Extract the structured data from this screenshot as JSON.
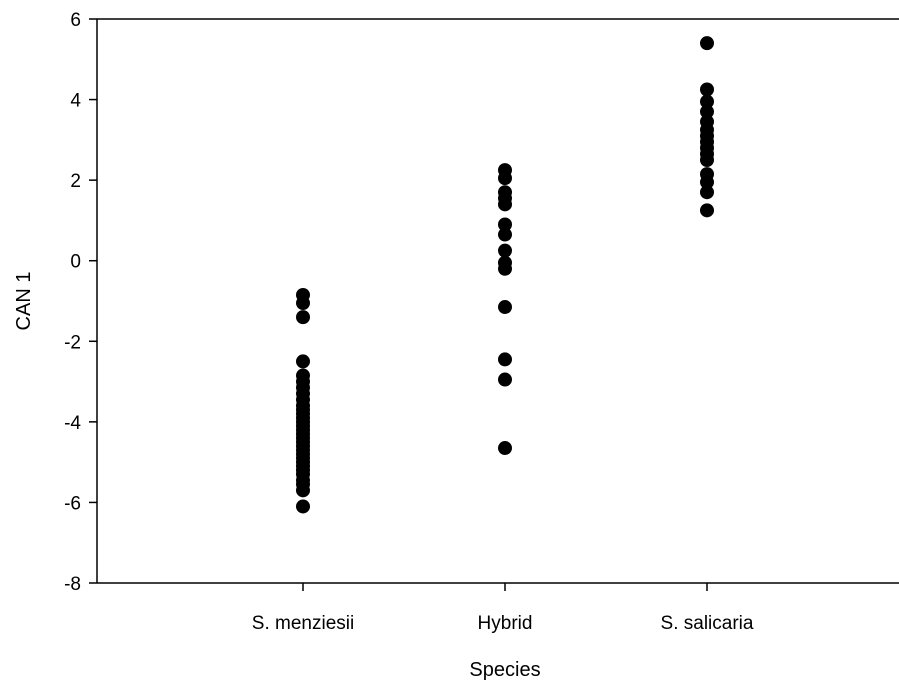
{
  "chart_data": {
    "type": "scatter",
    "xlabel": "Species",
    "ylabel": "CAN 1",
    "categories": [
      "S. menziesii",
      "Hybrid",
      "S. salicaria"
    ],
    "ylim": [
      -8,
      6
    ],
    "yticks": [
      "-8",
      "-6",
      "-4",
      "-2",
      "0",
      "2",
      "4",
      "6"
    ],
    "grid": false,
    "legend": "none",
    "marker_color": "#000000",
    "series": [
      {
        "category": "S. menziesii",
        "values": [
          -0.85,
          -1.05,
          -1.4,
          -2.5,
          -2.85,
          -3.0,
          -3.15,
          -3.3,
          -3.45,
          -3.6,
          -3.7,
          -3.8,
          -3.9,
          -4.0,
          -4.1,
          -4.2,
          -4.3,
          -4.4,
          -4.5,
          -4.6,
          -4.7,
          -4.8,
          -4.9,
          -5.0,
          -5.1,
          -5.2,
          -5.3,
          -5.45,
          -5.55,
          -5.7,
          -6.1
        ]
      },
      {
        "category": "Hybrid",
        "values": [
          2.25,
          2.05,
          1.7,
          1.55,
          1.4,
          0.9,
          0.65,
          0.25,
          -0.05,
          -0.2,
          -1.15,
          -2.45,
          -2.95,
          -4.65
        ]
      },
      {
        "category": "S. salicaria",
        "values": [
          5.4,
          4.25,
          3.95,
          3.7,
          3.45,
          3.25,
          3.1,
          2.95,
          2.8,
          2.65,
          2.5,
          2.15,
          1.95,
          1.7,
          1.25
        ]
      }
    ]
  }
}
